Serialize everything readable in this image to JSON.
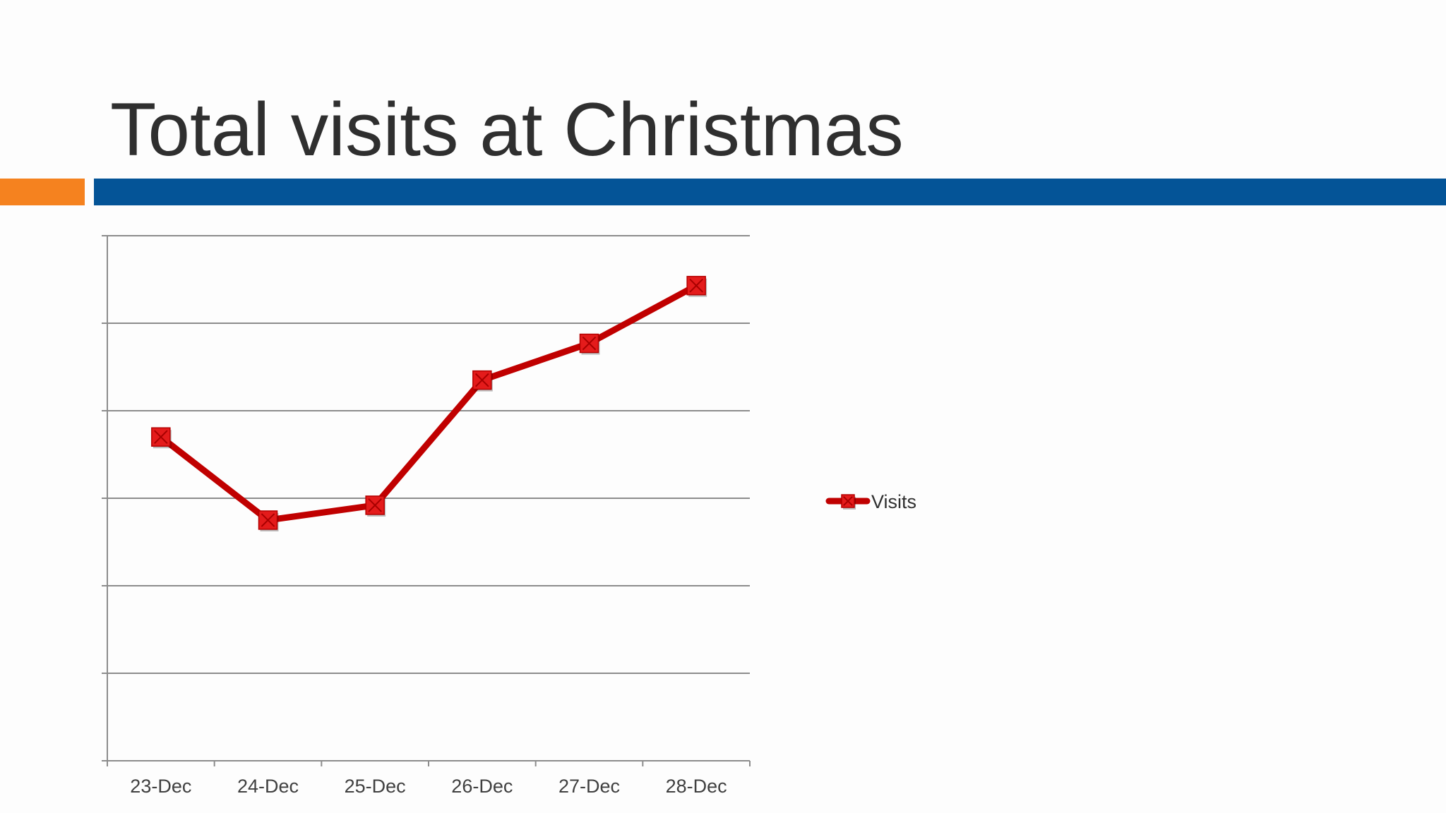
{
  "slide": {
    "title": "Total visits at Christmas"
  },
  "colors": {
    "accent_left": "#f5821f",
    "accent_right": "#045497",
    "series_line": "#c00000",
    "series_marker": "#e41b1b",
    "gridline": "#8c8c8c"
  },
  "chart_data": {
    "type": "line",
    "title": "",
    "xlabel": "",
    "ylabel": "",
    "categories": [
      "23-Dec",
      "24-Dec",
      "25-Dec",
      "26-Dec",
      "27-Dec",
      "28-Dec"
    ],
    "series": [
      {
        "name": "Visits",
        "values": [
          3.7,
          2.75,
          2.92,
          4.35,
          4.77,
          5.43
        ],
        "marker": "square-x"
      }
    ],
    "ylim": [
      0,
      6
    ],
    "y_tick_labels_shown": false,
    "grid": true,
    "legend": "right"
  }
}
